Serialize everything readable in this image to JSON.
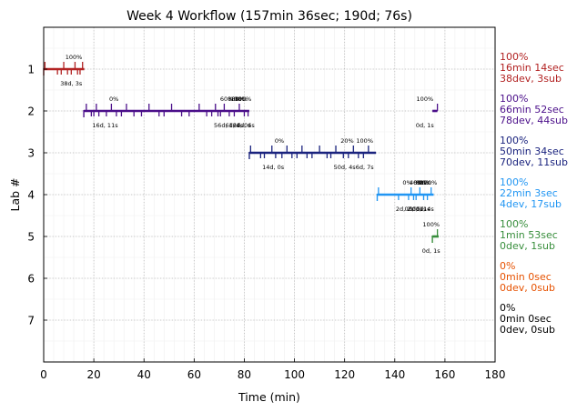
{
  "chart_data": {
    "type": "timeline",
    "title": "Week 4 Workflow (157min 36sec; 190d; 76s)",
    "xlabel": "Time (min)",
    "ylabel": "Lab #",
    "xlim": [
      0,
      180
    ],
    "ylim": [
      8,
      0
    ],
    "xticks": [
      0,
      20,
      40,
      60,
      80,
      100,
      120,
      140,
      160,
      180
    ],
    "yticks": [
      1,
      2,
      3,
      4,
      5,
      6,
      7
    ],
    "grid": true,
    "labs": [
      {
        "lab": 1,
        "color": "#b22222",
        "span": [
          0,
          16.2
        ],
        "events": [
          0.5,
          5.5,
          7,
          8,
          9.5,
          11,
          12.5,
          13.5,
          14.5,
          15.5
        ],
        "pct_labels": [
          {
            "x": 12,
            "text": "100%"
          }
        ],
        "dur_labels": [
          {
            "x": 11,
            "text": "38d, 3s"
          }
        ],
        "summary": [
          "100%",
          "16min 14sec",
          "38dev, 3sub"
        ]
      },
      {
        "lab": 2,
        "color": "#4b0f8a",
        "span": [
          16,
          82
        ],
        "events": [
          17,
          19,
          20,
          21,
          22,
          25,
          27,
          29,
          31,
          33,
          36,
          39,
          42,
          46,
          48,
          51,
          55,
          58,
          62,
          65,
          67,
          68.5,
          69.5,
          70.5,
          72,
          74,
          76,
          78,
          80,
          81.5
        ],
        "pct_labels": [
          {
            "x": 28,
            "text": "0%"
          },
          {
            "x": 73,
            "text": "60%"
          },
          {
            "x": 76,
            "text": "80%"
          },
          {
            "x": 77.5,
            "text": "80%"
          },
          {
            "x": 78.5,
            "text": "90%"
          },
          {
            "x": 79.5,
            "text": "100%"
          }
        ],
        "dur_labels": [
          {
            "x": 24.5,
            "text": "16d, 11s"
          },
          {
            "x": 73,
            "text": "56d, 12s"
          },
          {
            "x": 76,
            "text": "6d, 0s"
          },
          {
            "x": 79,
            "text": "6d, 0s"
          },
          {
            "x": 80.5,
            "text": "4d, 6s"
          }
        ],
        "extra_span": [
          155,
          157
        ],
        "extra_pct": {
          "x": 152,
          "text": "100%"
        },
        "extra_dur": {
          "x": 152,
          "text": "0d, 1s"
        },
        "summary": [
          "100%",
          "66min 52sec",
          "78dev, 44sub"
        ]
      },
      {
        "lab": 3,
        "color": "#1a237e",
        "span": [
          82,
          132.5
        ],
        "events": [
          82.5,
          86.5,
          88,
          91,
          92.5,
          95,
          97,
          99,
          101,
          103,
          105,
          107,
          110,
          113,
          114.5,
          116.5,
          119.5,
          121.5,
          123.5,
          125.5,
          127.5,
          129.5
        ],
        "pct_labels": [
          {
            "x": 94,
            "text": "0%"
          },
          {
            "x": 121,
            "text": "20%"
          },
          {
            "x": 128,
            "text": "100%"
          }
        ],
        "dur_labels": [
          {
            "x": 91.5,
            "text": "14d, 0s"
          },
          {
            "x": 120,
            "text": "50d, 4s"
          },
          {
            "x": 128,
            "text": "6d, 7s"
          }
        ],
        "summary": [
          "100%",
          "50min 34sec",
          "70dev, 11sub"
        ]
      },
      {
        "lab": 4,
        "color": "#2196f3",
        "span": [
          133,
          155.5
        ],
        "events": [
          133.5,
          141.5,
          145.5,
          146.5,
          147.5,
          148.5,
          150,
          151.5,
          153,
          154.5
        ],
        "pct_labels": [
          {
            "x": 145,
            "text": "0%"
          },
          {
            "x": 148.5,
            "text": "40%"
          },
          {
            "x": 150,
            "text": "60%"
          },
          {
            "x": 151,
            "text": "80%"
          },
          {
            "x": 152,
            "text": "90%"
          },
          {
            "x": 153.5,
            "text": "100%"
          }
        ],
        "dur_labels": [
          {
            "x": 144,
            "text": "2d, 2s"
          },
          {
            "x": 147.5,
            "text": "0d, 0s"
          },
          {
            "x": 149,
            "text": "0d, 1s"
          },
          {
            "x": 150.5,
            "text": "0d, 1s"
          },
          {
            "x": 152,
            "text": "1d, 4s"
          }
        ],
        "summary": [
          "100%",
          "22min 3sec",
          "4dev, 17sub"
        ]
      },
      {
        "lab": 5,
        "color": "#388e3c",
        "span": [
          155,
          157.5
        ],
        "events": [
          157
        ],
        "pct_labels": [
          {
            "x": 154.5,
            "text": "100%"
          }
        ],
        "dur_labels": [
          {
            "x": 154.5,
            "text": "0d, 1s"
          }
        ],
        "summary": [
          "100%",
          "1min 53sec",
          "0dev, 1sub"
        ]
      },
      {
        "lab": 6,
        "color": "#e65100",
        "span": null,
        "events": [],
        "pct_labels": [],
        "dur_labels": [],
        "summary": [
          "0%",
          "0min 0sec",
          "0dev, 0sub"
        ]
      },
      {
        "lab": 7,
        "color": "#000000",
        "span": null,
        "events": [],
        "pct_labels": [],
        "dur_labels": [],
        "summary": [
          "0%",
          "0min 0sec",
          "0dev, 0sub"
        ]
      }
    ]
  }
}
